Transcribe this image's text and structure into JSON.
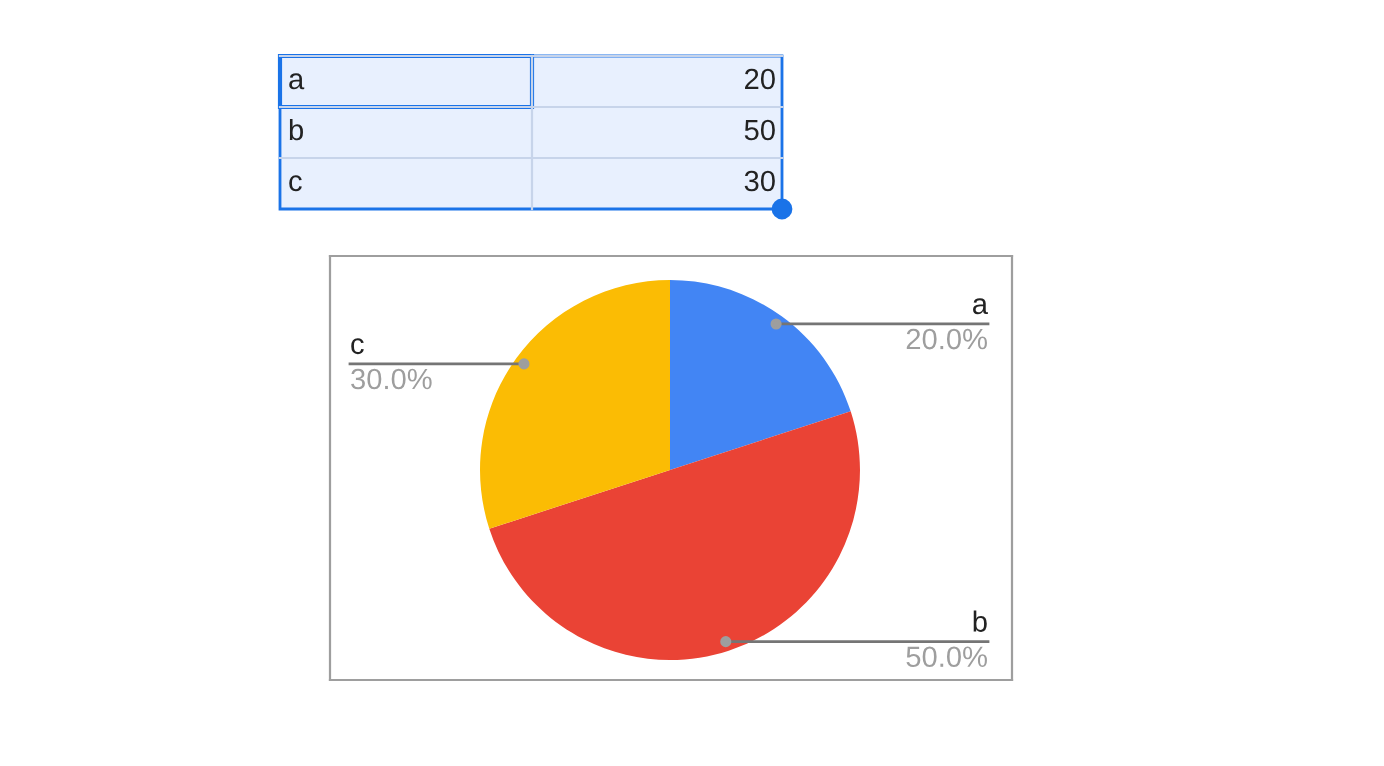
{
  "chart_data": {
    "type": "pie",
    "categories": [
      "a",
      "b",
      "c"
    ],
    "values": [
      20,
      50,
      30
    ],
    "colors": [
      "#4285f4",
      "#ea4335",
      "#fbbc04"
    ],
    "value_labels": [
      "20.0%",
      "50.0%",
      "30.0%"
    ],
    "data_labels": true,
    "annotations": [
      "20",
      "50",
      "30"
    ]
  }
}
